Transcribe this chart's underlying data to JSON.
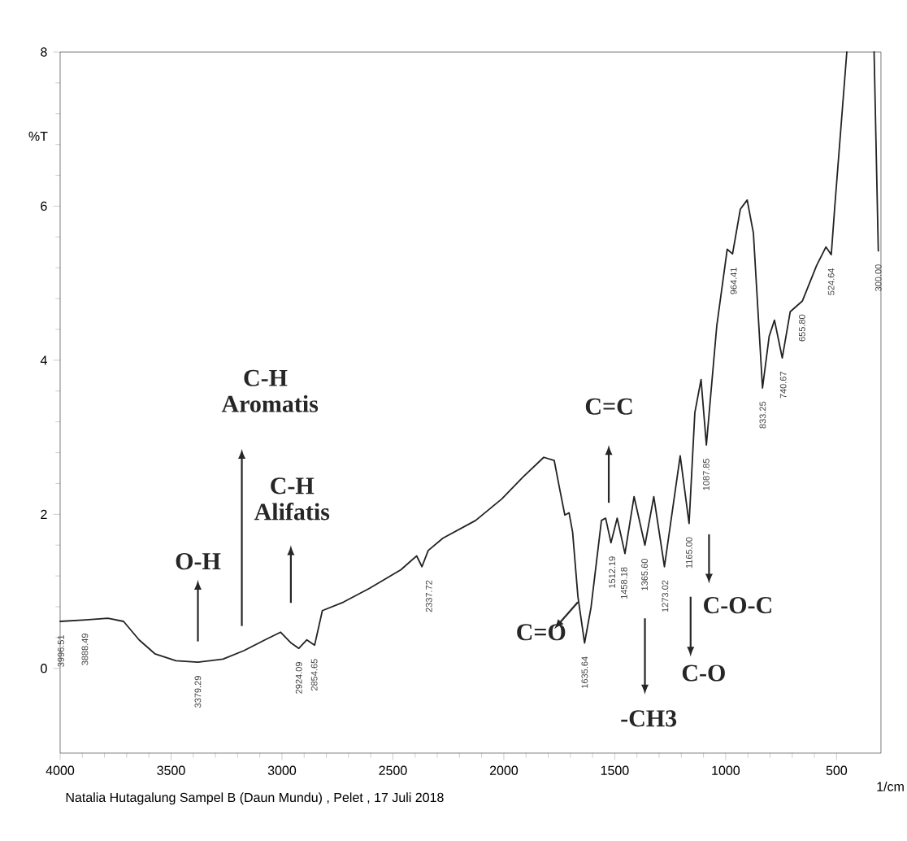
{
  "chart_data": {
    "type": "line",
    "xlabel": "1/cm",
    "ylabel": "%T",
    "x": [
      4000,
      3884,
      3785,
      3714,
      3644,
      3573,
      3478,
      3379,
      3266,
      3172,
      3077,
      3006,
      2959,
      2924,
      2888,
      2853,
      2818,
      2723,
      2605,
      2464,
      2393,
      2369,
      2341,
      2275,
      2127,
      2009,
      1915,
      1820,
      1773,
      1749,
      1725,
      1706,
      1690,
      1666,
      1636,
      1607,
      1560,
      1541,
      1517,
      1489,
      1454,
      1413,
      1364,
      1324,
      1276,
      1205,
      1165,
      1139,
      1111,
      1087,
      1040,
      993,
      969,
      934,
      903,
      875,
      834,
      804,
      780,
      745,
      709,
      654,
      590,
      548,
      524,
      508,
      454,
      400,
      331,
      312
    ],
    "series": [
      {
        "color": "#222222",
        "values": [
          0.61,
          0.63,
          0.65,
          0.61,
          0.37,
          0.19,
          0.1,
          0.08,
          0.12,
          0.23,
          0.37,
          0.47,
          0.33,
          0.26,
          0.37,
          0.3,
          0.75,
          0.86,
          1.04,
          1.28,
          1.46,
          1.32,
          1.53,
          1.69,
          1.92,
          2.2,
          2.48,
          2.74,
          2.7,
          2.34,
          1.99,
          2.02,
          1.77,
          0.93,
          0.33,
          0.79,
          1.92,
          1.95,
          1.63,
          1.95,
          1.49,
          2.23,
          1.6,
          2.23,
          1.32,
          2.76,
          1.88,
          3.32,
          3.75,
          2.9,
          4.45,
          5.44,
          5.38,
          5.96,
          6.08,
          5.65,
          3.64,
          4.31,
          4.52,
          4.03,
          4.63,
          4.77,
          5.23,
          5.47,
          5.37,
          6.0,
          8.0,
          null,
          8.0,
          5.42
        ]
      }
    ],
    "xlim": [
      4000,
      300
    ],
    "ylim": [
      -1.1,
      8
    ],
    "xticks": [
      4000,
      3500,
      3000,
      2500,
      2000,
      1500,
      1000,
      500
    ],
    "yticks": [
      0,
      2,
      4,
      6,
      8
    ],
    "annotations": [
      "O-H",
      "C-H Aromatis",
      "C-H Alifatis",
      "C=C",
      "C=O",
      "-CH3",
      "C-O",
      "C-O-C",
      {
        "text": "3996.51",
        "x": 3996.51,
        "y": 0.61
      },
      {
        "text": "3888.49",
        "x": 3888.49,
        "y": 0.63
      },
      {
        "text": "3379.29",
        "x": 3379.29,
        "y": 0.08
      },
      {
        "text": "2924.09",
        "x": 2924.09,
        "y": 0.26
      },
      {
        "text": "2854.65",
        "x": 2854.65,
        "y": 0.3
      },
      {
        "text": "2337.72",
        "x": 2337.72,
        "y": 1.32
      },
      {
        "text": "1635.64",
        "x": 1635.64,
        "y": 0.33
      },
      {
        "text": "1512.19",
        "x": 1512.19,
        "y": 1.63
      },
      {
        "text": "1458.18",
        "x": 1458.18,
        "y": 1.49
      },
      {
        "text": "1365.60",
        "x": 1365.6,
        "y": 1.6
      },
      {
        "text": "1273.02",
        "x": 1273.02,
        "y": 1.32
      },
      {
        "text": "1165.00",
        "x": 1165.0,
        "y": 1.88
      },
      {
        "text": "1087.85",
        "x": 1087.85,
        "y": 2.9
      },
      {
        "text": "964.41",
        "x": 964.41,
        "y": 5.38
      },
      {
        "text": "833.25",
        "x": 833.25,
        "y": 3.64
      },
      {
        "text": "740.67",
        "x": 740.67,
        "y": 4.03
      },
      {
        "text": "655.80",
        "x": 655.8,
        "y": 4.77
      },
      {
        "text": "524.64",
        "x": 524.64,
        "y": 5.37
      },
      {
        "text": "300.00",
        "x": 312,
        "y": 5.42
      },
      "Natalia Hutagalung Sampel B (Daun Mundu) , Pelet , 17 Juli 2018"
    ]
  }
}
